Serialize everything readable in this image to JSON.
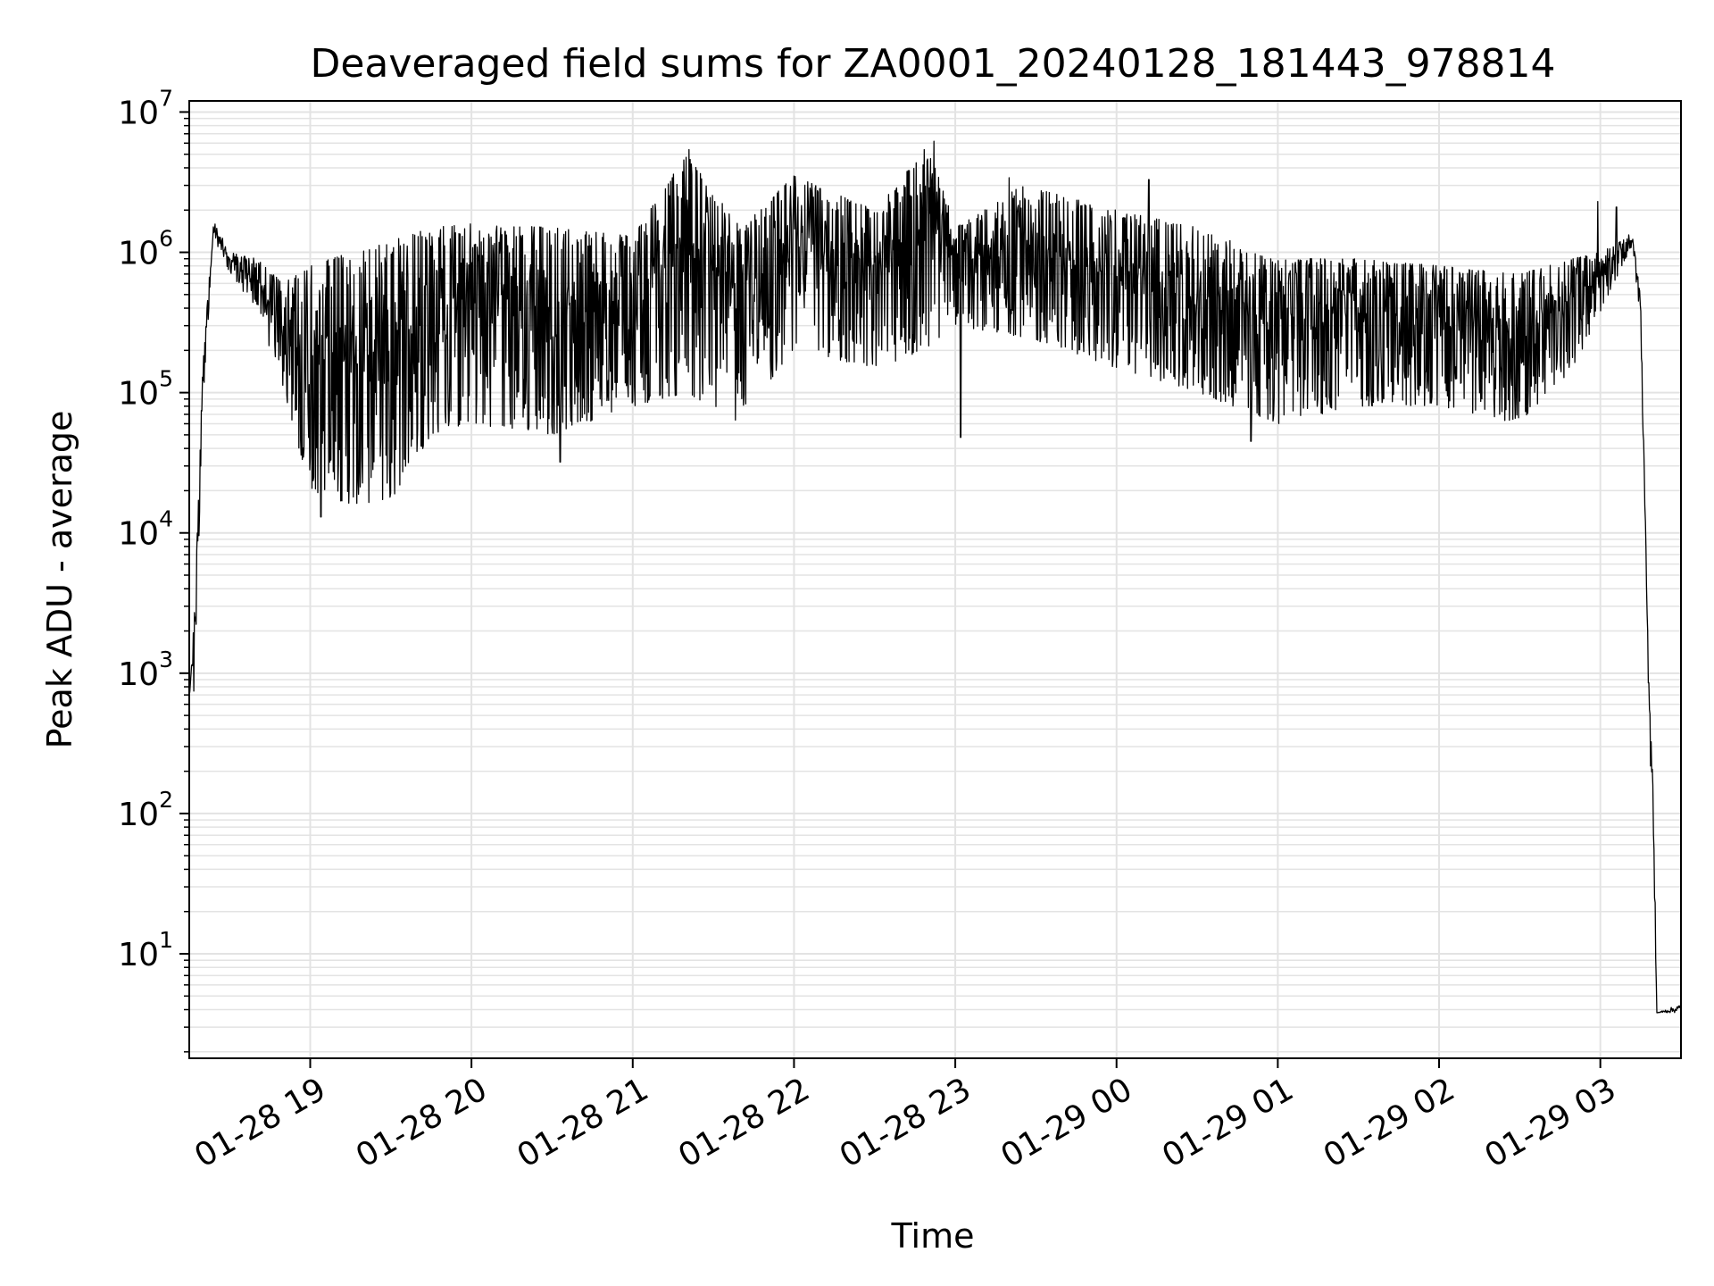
{
  "chart_data": {
    "type": "line",
    "title": "Deaveraged field sums for ZA0001_20240128_181443_978814",
    "xlabel": "Time",
    "ylabel": "Peak ADU - average",
    "yscale": "log",
    "ylim": [
      1.8,
      12000000
    ],
    "xlim": [
      "2024-01-28 18:15",
      "2024-01-29 03:30"
    ],
    "x_ticks": [
      {
        "label": "01-28 19",
        "value": "2024-01-28 19:00"
      },
      {
        "label": "01-28 20",
        "value": "2024-01-28 20:00"
      },
      {
        "label": "01-28 21",
        "value": "2024-01-28 21:00"
      },
      {
        "label": "01-28 22",
        "value": "2024-01-28 22:00"
      },
      {
        "label": "01-28 23",
        "value": "2024-01-28 23:00"
      },
      {
        "label": "01-29 00",
        "value": "2024-01-29 00:00"
      },
      {
        "label": "01-29 01",
        "value": "2024-01-29 01:00"
      },
      {
        "label": "01-29 02",
        "value": "2024-01-29 02:00"
      },
      {
        "label": "01-29 03",
        "value": "2024-01-29 03:00"
      }
    ],
    "y_ticks": [
      {
        "base": "10",
        "exp": "1",
        "value": 10
      },
      {
        "base": "10",
        "exp": "2",
        "value": 100
      },
      {
        "base": "10",
        "exp": "3",
        "value": 1000
      },
      {
        "base": "10",
        "exp": "4",
        "value": 10000
      },
      {
        "base": "10",
        "exp": "5",
        "value": 100000
      },
      {
        "base": "10",
        "exp": "6",
        "value": 1000000
      },
      {
        "base": "10",
        "exp": "7",
        "value": 10000000
      }
    ],
    "grid": true,
    "line_color": "#000000",
    "grid_color": "#e3e3e3",
    "series": [
      {
        "envelope": [
          {
            "t": "2024-01-28 18:15",
            "lo": 700,
            "hi": 700
          },
          {
            "t": "2024-01-28 18:17",
            "lo": 700,
            "hi": 3000
          },
          {
            "t": "2024-01-28 18:20",
            "lo": 80000,
            "hi": 150000
          },
          {
            "t": "2024-01-28 18:24",
            "lo": 1300000,
            "hi": 1700000
          },
          {
            "t": "2024-01-28 18:30",
            "lo": 700000,
            "hi": 1000000
          },
          {
            "t": "2024-01-28 18:40",
            "lo": 400000,
            "hi": 900000
          },
          {
            "t": "2024-01-28 18:50",
            "lo": 100000,
            "hi": 600000
          },
          {
            "t": "2024-01-28 19:00",
            "lo": 20000,
            "hi": 800000
          },
          {
            "t": "2024-01-28 19:15",
            "lo": 16000,
            "hi": 1000000
          },
          {
            "t": "2024-01-28 19:30",
            "lo": 17000,
            "hi": 1200000
          },
          {
            "t": "2024-01-28 19:45",
            "lo": 50000,
            "hi": 1500000
          },
          {
            "t": "2024-01-28 20:00",
            "lo": 60000,
            "hi": 1600000
          },
          {
            "t": "2024-01-28 20:30",
            "lo": 50000,
            "hi": 1500000
          },
          {
            "t": "2024-01-28 21:00",
            "lo": 80000,
            "hi": 1300000
          },
          {
            "t": "2024-01-28 21:20",
            "lo": 100000,
            "hi": 5000000
          },
          {
            "t": "2024-01-28 21:40",
            "lo": 60000,
            "hi": 1500000
          },
          {
            "t": "2024-01-28 22:00",
            "lo": 200000,
            "hi": 3500000
          },
          {
            "t": "2024-01-28 22:30",
            "lo": 150000,
            "hi": 2000000
          },
          {
            "t": "2024-01-28 22:50",
            "lo": 200000,
            "hi": 6000000
          },
          {
            "t": "2024-01-28 23:00",
            "lo": 300000,
            "hi": 1500000
          },
          {
            "t": "2024-01-28 23:25",
            "lo": 250000,
            "hi": 3000000
          },
          {
            "t": "2024-01-29 00:00",
            "lo": 150000,
            "hi": 2000000
          },
          {
            "t": "2024-01-29 00:30",
            "lo": 100000,
            "hi": 1500000
          },
          {
            "t": "2024-01-29 01:00",
            "lo": 60000,
            "hi": 900000
          },
          {
            "t": "2024-01-29 01:30",
            "lo": 80000,
            "hi": 900000
          },
          {
            "t": "2024-01-29 02:00",
            "lo": 80000,
            "hi": 800000
          },
          {
            "t": "2024-01-29 02:30",
            "lo": 60000,
            "hi": 700000
          },
          {
            "t": "2024-01-29 02:50",
            "lo": 150000,
            "hi": 900000
          },
          {
            "t": "2024-01-29 03:05",
            "lo": 600000,
            "hi": 1100000
          },
          {
            "t": "2024-01-29 03:12",
            "lo": 1100000,
            "hi": 1400000
          },
          {
            "t": "2024-01-29 03:15",
            "lo": 300000,
            "hi": 500000
          },
          {
            "t": "2024-01-29 03:18",
            "lo": 600,
            "hi": 900
          },
          {
            "t": "2024-01-29 03:20",
            "lo": 30,
            "hi": 100
          },
          {
            "t": "2024-01-29 03:21",
            "lo": 3.8,
            "hi": 3.8
          },
          {
            "t": "2024-01-29 03:30",
            "lo": 3.8,
            "hi": 4.4
          }
        ],
        "spikes": [
          {
            "t": "2024-01-28 21:21",
            "value": 5400000
          },
          {
            "t": "2024-01-28 22:52",
            "value": 6200000
          },
          {
            "t": "2024-01-28 22:00",
            "value": 3500000
          },
          {
            "t": "2024-01-28 23:20",
            "value": 3400000
          },
          {
            "t": "2024-01-29 02:59",
            "value": 2300000
          },
          {
            "t": "2024-01-29 03:06",
            "value": 2100000
          },
          {
            "t": "2024-01-28 22:41",
            "value": 3000000
          },
          {
            "t": "2024-01-29 00:12",
            "value": 3300000
          },
          {
            "t": "2024-01-28 19:04",
            "value": 13000
          },
          {
            "t": "2024-01-28 20:33",
            "value": 32000
          },
          {
            "t": "2024-01-28 23:02",
            "value": 48000
          },
          {
            "t": "2024-01-29 00:50",
            "value": 45000
          }
        ]
      }
    ]
  }
}
